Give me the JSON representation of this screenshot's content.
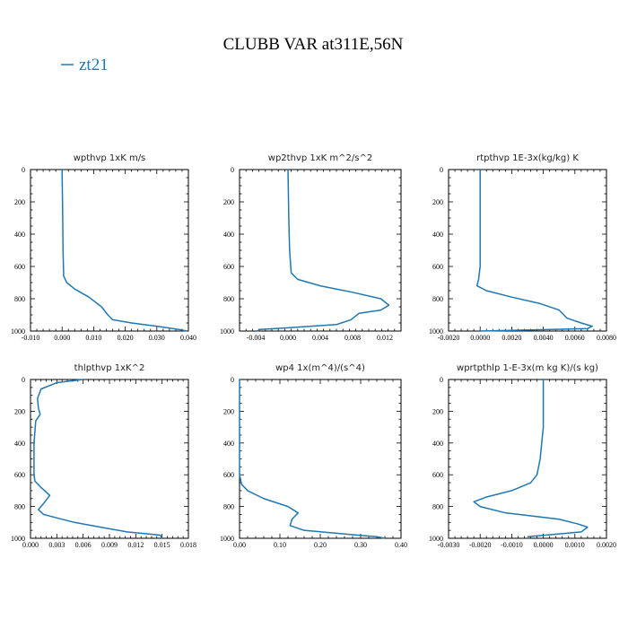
{
  "figure": {
    "title": "CLUBB VAR at311E,56N",
    "legend": [
      {
        "name": "zt21",
        "color": "#1f77b4"
      }
    ]
  },
  "chart_data": [
    {
      "type": "line",
      "title": "wpthvp   1xK  m/s",
      "xlim": [
        -0.01,
        0.04
      ],
      "ylim": [
        1000,
        0
      ],
      "xticks": [
        -0.01,
        0.0,
        0.01,
        0.02,
        0.03,
        0.04
      ],
      "xtick_labels": [
        "-0.010",
        "0.000",
        "0.010",
        "0.020",
        "0.030",
        "0.040"
      ],
      "yticks": [
        0,
        200,
        400,
        600,
        800,
        1000
      ],
      "ytick_labels": [
        "0",
        "200",
        "400",
        "600",
        "800",
        "1000"
      ],
      "series": [
        {
          "color": "#1f77b4",
          "x": [
            0.0,
            0.0002,
            0.0003,
            0.0005,
            0.0015,
            0.004,
            0.0085,
            0.0125,
            0.0145,
            0.016,
            0.022,
            0.03,
            0.037,
            0.0395
          ],
          "y": [
            0,
            300,
            500,
            660,
            700,
            740,
            790,
            850,
            900,
            930,
            950,
            970,
            990,
            1000
          ]
        }
      ]
    },
    {
      "type": "line",
      "title": "wp2thvp   1xK  m^2/s^2",
      "xlim": [
        -0.006,
        0.014
      ],
      "ylim": [
        1000,
        0
      ],
      "xticks": [
        -0.004,
        0.0,
        0.004,
        0.008,
        0.012
      ],
      "xtick_labels": [
        "-0.004",
        "0.000",
        "0.004",
        "0.008",
        "0.012"
      ],
      "yticks": [
        0,
        200,
        400,
        600,
        800,
        1000
      ],
      "ytick_labels": [
        "0",
        "200",
        "400",
        "600",
        "800",
        "1000"
      ],
      "series": [
        {
          "color": "#1f77b4",
          "x": [
            0.0,
            0.0001,
            0.0002,
            0.0004,
            0.0012,
            0.004,
            0.008,
            0.0115,
            0.0125,
            0.0115,
            0.0088,
            0.0078,
            0.006,
            0.0,
            -0.0035,
            -0.0038
          ],
          "y": [
            0,
            300,
            500,
            640,
            680,
            720,
            760,
            800,
            840,
            870,
            890,
            930,
            960,
            980,
            990,
            1000
          ]
        }
      ]
    },
    {
      "type": "line",
      "title": "rtpthvp   1E-3x(kg/kg)  K",
      "xlim": [
        -0.002,
        0.008
      ],
      "ylim": [
        1000,
        0
      ],
      "xticks": [
        -0.002,
        0.0,
        0.002,
        0.004,
        0.006,
        0.008
      ],
      "xtick_labels": [
        "-0.0020",
        "0.0000",
        "0.0020",
        "0.0040",
        "0.0060",
        "0.0080"
      ],
      "yticks": [
        0,
        200,
        400,
        600,
        800,
        1000
      ],
      "ytick_labels": [
        "0",
        "200",
        "400",
        "600",
        "800",
        "1000"
      ],
      "series": [
        {
          "color": "#1f77b4",
          "x": [
            0.0,
            0.0,
            0.0,
            -0.0001,
            -0.0002,
            0.0004,
            0.002,
            0.0038,
            0.005,
            0.0055,
            0.0064,
            0.0071,
            0.0068,
            0.0
          ],
          "y": [
            0,
            300,
            600,
            680,
            720,
            750,
            790,
            830,
            870,
            920,
            950,
            970,
            985,
            1000
          ]
        }
      ]
    },
    {
      "type": "line",
      "title": "thlpthvp   1xK^2",
      "xlim": [
        0.0,
        0.018
      ],
      "ylim": [
        1000,
        0
      ],
      "xticks": [
        0.0,
        0.003,
        0.006,
        0.009,
        0.012,
        0.015,
        0.018
      ],
      "xtick_labels": [
        "0.000",
        "0.003",
        "0.006",
        "0.009",
        "0.012",
        "0.015",
        "0.018"
      ],
      "yticks": [
        0,
        200,
        400,
        600,
        800,
        1000
      ],
      "ytick_labels": [
        "0",
        "200",
        "400",
        "600",
        "800",
        "1000"
      ],
      "series": [
        {
          "color": "#1f77b4",
          "x": [
            0.006,
            0.003,
            0.0012,
            0.0008,
            0.0009,
            0.0011,
            0.0006,
            0.0004,
            0.0004,
            0.0005,
            0.0012,
            0.0022,
            0.0015,
            0.0009,
            0.0015,
            0.005,
            0.011,
            0.0148,
            0.015
          ],
          "y": [
            0,
            20,
            60,
            120,
            180,
            220,
            260,
            400,
            600,
            640,
            680,
            730,
            780,
            820,
            850,
            900,
            960,
            980,
            1000
          ]
        }
      ]
    },
    {
      "type": "line",
      "title": "wp4   1x(m^4)/(s^4)",
      "xlim": [
        0.0,
        0.4
      ],
      "ylim": [
        1000,
        0
      ],
      "xticks": [
        0.0,
        0.1,
        0.2,
        0.3,
        0.4
      ],
      "xtick_labels": [
        "0.00",
        "0.10",
        "0.20",
        "0.30",
        "0.40"
      ],
      "yticks": [
        0,
        200,
        400,
        600,
        800,
        1000
      ],
      "ytick_labels": [
        "0",
        "200",
        "400",
        "600",
        "800",
        "1000"
      ],
      "series": [
        {
          "color": "#1f77b4",
          "x": [
            0.0,
            0.0,
            0.005,
            0.02,
            0.06,
            0.12,
            0.145,
            0.13,
            0.125,
            0.16,
            0.27,
            0.34,
            0.36
          ],
          "y": [
            0,
            600,
            660,
            700,
            750,
            800,
            840,
            880,
            920,
            950,
            975,
            990,
            1000
          ]
        }
      ]
    },
    {
      "type": "line",
      "title": "wprtpthlp   1-E-3x(m  kg  K)/(s  kg)",
      "xlim": [
        -0.003,
        0.002
      ],
      "ylim": [
        1000,
        0
      ],
      "xticks": [
        -0.003,
        -0.002,
        -0.001,
        0.0,
        0.001,
        0.002
      ],
      "xtick_labels": [
        "-0.0030",
        "-0.0020",
        "-0.0010",
        "0.0000",
        "0.0010",
        "0.0020"
      ],
      "yticks": [
        0,
        200,
        400,
        600,
        800,
        1000
      ],
      "ytick_labels": [
        "0",
        "200",
        "400",
        "600",
        "800",
        "1000"
      ],
      "series": [
        {
          "color": "#1f77b4",
          "x": [
            0.0,
            0.0,
            -0.0001,
            -0.0002,
            -0.0004,
            -0.001,
            -0.0018,
            -0.0022,
            -0.002,
            -0.0012,
            0.0005,
            0.0011,
            0.0014,
            0.0012,
            -0.0005
          ],
          "y": [
            0,
            300,
            500,
            600,
            650,
            700,
            740,
            770,
            800,
            840,
            880,
            910,
            930,
            960,
            990
          ]
        }
      ]
    }
  ]
}
